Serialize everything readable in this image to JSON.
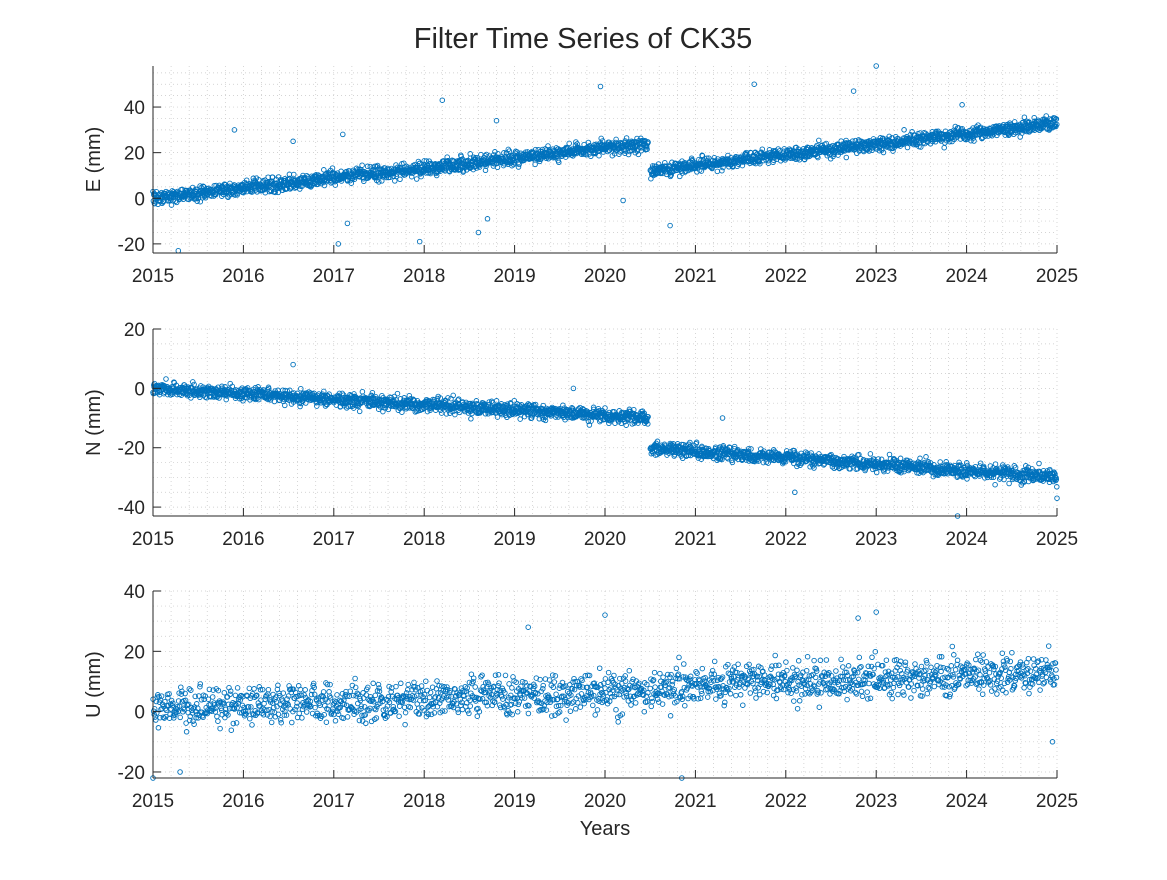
{
  "figure": {
    "title": "Filter Time Series of CK35",
    "xlabel": "Years"
  },
  "chart_data": [
    {
      "type": "scatter",
      "marker": "open-circle",
      "color": "#0072BD",
      "grid": "dotted-minor",
      "ylabel": "E (mm)",
      "xlim": [
        2015,
        2025
      ],
      "ylim": [
        -24,
        58
      ],
      "xticks": [
        2015,
        2016,
        2017,
        2018,
        2019,
        2020,
        2021,
        2022,
        2023,
        2024,
        2025
      ],
      "xtick_labels": [
        "2015",
        "2016",
        "2017",
        "2018",
        "2019",
        "2020",
        "2021",
        "2022",
        "2023",
        "2024",
        "2025"
      ],
      "yticks": [
        -20,
        0,
        20,
        40
      ],
      "ytick_labels": [
        "-20",
        "0",
        "20",
        "40"
      ],
      "trend": [
        {
          "x0": 2015.0,
          "x1": 2020.48,
          "y0": 0,
          "y1": 24
        },
        {
          "x0": 2020.5,
          "x1": 2025.0,
          "y0": 12,
          "y1": 33
        }
      ],
      "scatter_sd": 3,
      "outliers": [
        {
          "x": 2015.28,
          "y": -23
        },
        {
          "x": 2015.9,
          "y": 30
        },
        {
          "x": 2016.55,
          "y": 25
        },
        {
          "x": 2017.05,
          "y": -20
        },
        {
          "x": 2017.15,
          "y": -11
        },
        {
          "x": 2017.1,
          "y": 28
        },
        {
          "x": 2017.95,
          "y": -19
        },
        {
          "x": 2018.2,
          "y": 43
        },
        {
          "x": 2018.6,
          "y": -15
        },
        {
          "x": 2018.7,
          "y": -9
        },
        {
          "x": 2018.8,
          "y": 34
        },
        {
          "x": 2019.95,
          "y": 49
        },
        {
          "x": 2020.2,
          "y": -1
        },
        {
          "x": 2020.72,
          "y": -12
        },
        {
          "x": 2021.65,
          "y": 50
        },
        {
          "x": 2022.75,
          "y": 47
        },
        {
          "x": 2023.0,
          "y": 58
        },
        {
          "x": 2023.95,
          "y": 41
        }
      ]
    },
    {
      "type": "scatter",
      "marker": "open-circle",
      "color": "#0072BD",
      "grid": "dotted-minor",
      "ylabel": "N (mm)",
      "xlim": [
        2015,
        2025
      ],
      "ylim": [
        -43,
        20
      ],
      "xticks": [
        2015,
        2016,
        2017,
        2018,
        2019,
        2020,
        2021,
        2022,
        2023,
        2024,
        2025
      ],
      "xtick_labels": [
        "2015",
        "2016",
        "2017",
        "2018",
        "2019",
        "2020",
        "2021",
        "2022",
        "2023",
        "2024",
        "2025"
      ],
      "yticks": [
        -40,
        -20,
        0,
        20
      ],
      "ytick_labels": [
        "-40",
        "-20",
        "0",
        "20"
      ],
      "trend": [
        {
          "x0": 2015.0,
          "x1": 2020.48,
          "y0": 0,
          "y1": -10
        },
        {
          "x0": 2020.5,
          "x1": 2025.0,
          "y0": -20,
          "y1": -30
        }
      ],
      "scatter_sd": 2.3,
      "outliers": [
        {
          "x": 2016.55,
          "y": 8
        },
        {
          "x": 2019.65,
          "y": 0
        },
        {
          "x": 2021.3,
          "y": -10
        },
        {
          "x": 2022.1,
          "y": -35
        },
        {
          "x": 2023.9,
          "y": -43
        },
        {
          "x": 2025.0,
          "y": -37
        }
      ]
    },
    {
      "type": "scatter",
      "marker": "open-circle",
      "color": "#0072BD",
      "grid": "dotted-minor",
      "ylabel": "U (mm)",
      "xlim": [
        2015,
        2025
      ],
      "ylim": [
        -22,
        40
      ],
      "xticks": [
        2015,
        2016,
        2017,
        2018,
        2019,
        2020,
        2021,
        2022,
        2023,
        2024,
        2025
      ],
      "xtick_labels": [
        "2015",
        "2016",
        "2017",
        "2018",
        "2019",
        "2020",
        "2021",
        "2022",
        "2023",
        "2024",
        "2025"
      ],
      "yticks": [
        -20,
        0,
        20,
        40
      ],
      "ytick_labels": [
        "-20",
        "0",
        "20",
        "40"
      ],
      "trend": [
        {
          "x0": 2015.0,
          "x1": 2020.48,
          "y0": 1,
          "y1": 7
        },
        {
          "x0": 2020.5,
          "x1": 2025.0,
          "y0": 8,
          "y1": 13
        }
      ],
      "scatter_sd": 6.5,
      "outliers": [
        {
          "x": 2015.0,
          "y": -22
        },
        {
          "x": 2015.3,
          "y": -20
        },
        {
          "x": 2019.15,
          "y": 28
        },
        {
          "x": 2020.0,
          "y": 32
        },
        {
          "x": 2020.85,
          "y": -22
        },
        {
          "x": 2022.8,
          "y": 31
        },
        {
          "x": 2023.0,
          "y": 33
        },
        {
          "x": 2024.95,
          "y": -10
        }
      ]
    }
  ]
}
